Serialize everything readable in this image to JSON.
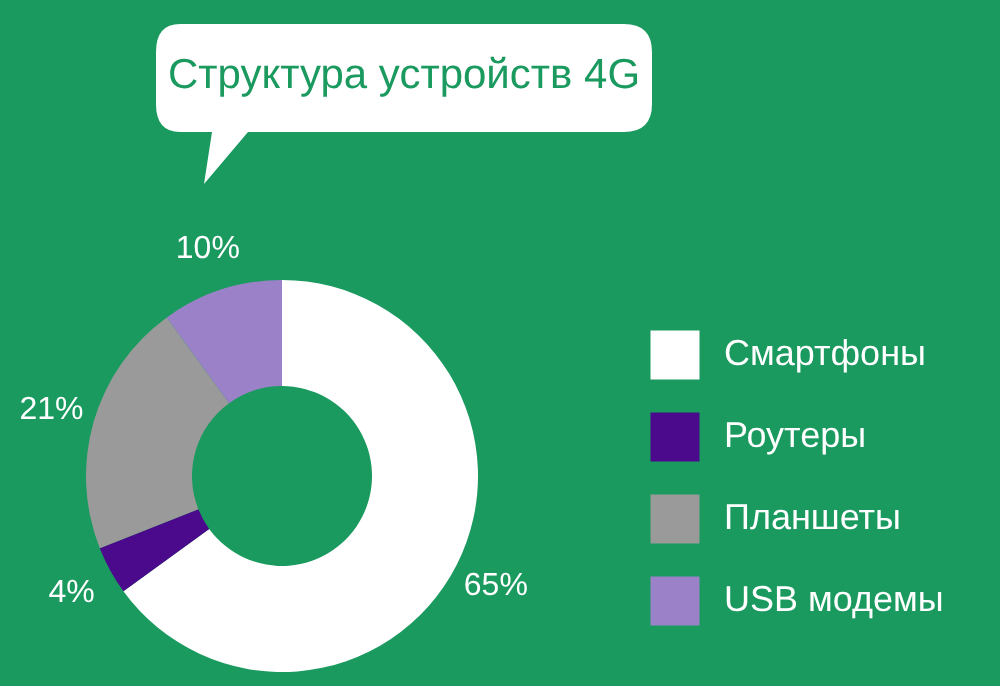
{
  "chart_data": {
    "type": "donut",
    "title": "Структура устройств 4G",
    "categories": [
      "Смартфоны",
      "Роутеры",
      "Планшеты",
      "USB модемы"
    ],
    "values": [
      65,
      4,
      21,
      10
    ],
    "colors": [
      "#ffffff",
      "#4b0a8c",
      "#9a9a9a",
      "#9b82c8"
    ],
    "value_labels": [
      "65%",
      "4%",
      "21%",
      "10%"
    ],
    "legend": "right"
  }
}
